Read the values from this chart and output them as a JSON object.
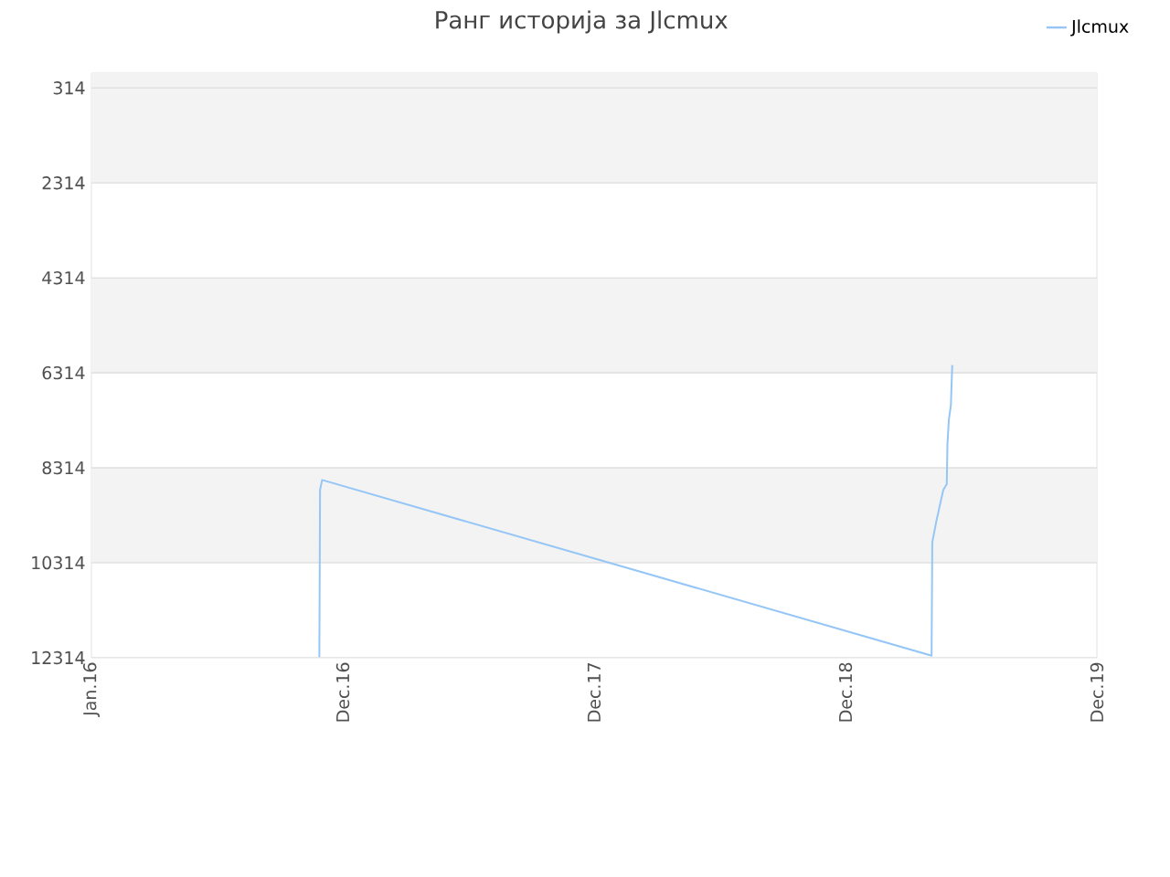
{
  "chart_data": {
    "type": "line",
    "title": "Ранг историја за Jlcmux",
    "x": [
      "2016-11-27",
      "2016-11-28",
      "2016-12-01",
      "2019-05-05",
      "2019-05-06",
      "2019-05-12",
      "2019-05-18",
      "2019-05-22",
      "2019-05-27",
      "2019-05-28",
      "2019-05-30",
      "2019-06-02",
      "2019-06-04"
    ],
    "series": [
      {
        "name": "Jlcmux",
        "color": "#95c6f6",
        "values": [
          12300,
          8780,
          8570,
          12270,
          9880,
          9430,
          9040,
          8780,
          8660,
          7820,
          7310,
          6990,
          6150
        ]
      }
    ],
    "xlim": [
      "2016-01-01",
      "2019-12-31"
    ],
    "xticks": [
      {
        "value": "2016-01-01",
        "label": "Jan.16"
      },
      {
        "value": "2016-12-31",
        "label": "Dec.16"
      },
      {
        "value": "2017-12-31",
        "label": "Dec.17"
      },
      {
        "value": "2018-12-31",
        "label": "Dec.18"
      },
      {
        "value": "2019-12-31",
        "label": "Dec.19"
      }
    ],
    "ylim": [
      12314,
      1
    ],
    "yticks": [
      314,
      2314,
      4314,
      6314,
      8314,
      10314,
      12314
    ],
    "grid": "y",
    "legend": "top right"
  }
}
